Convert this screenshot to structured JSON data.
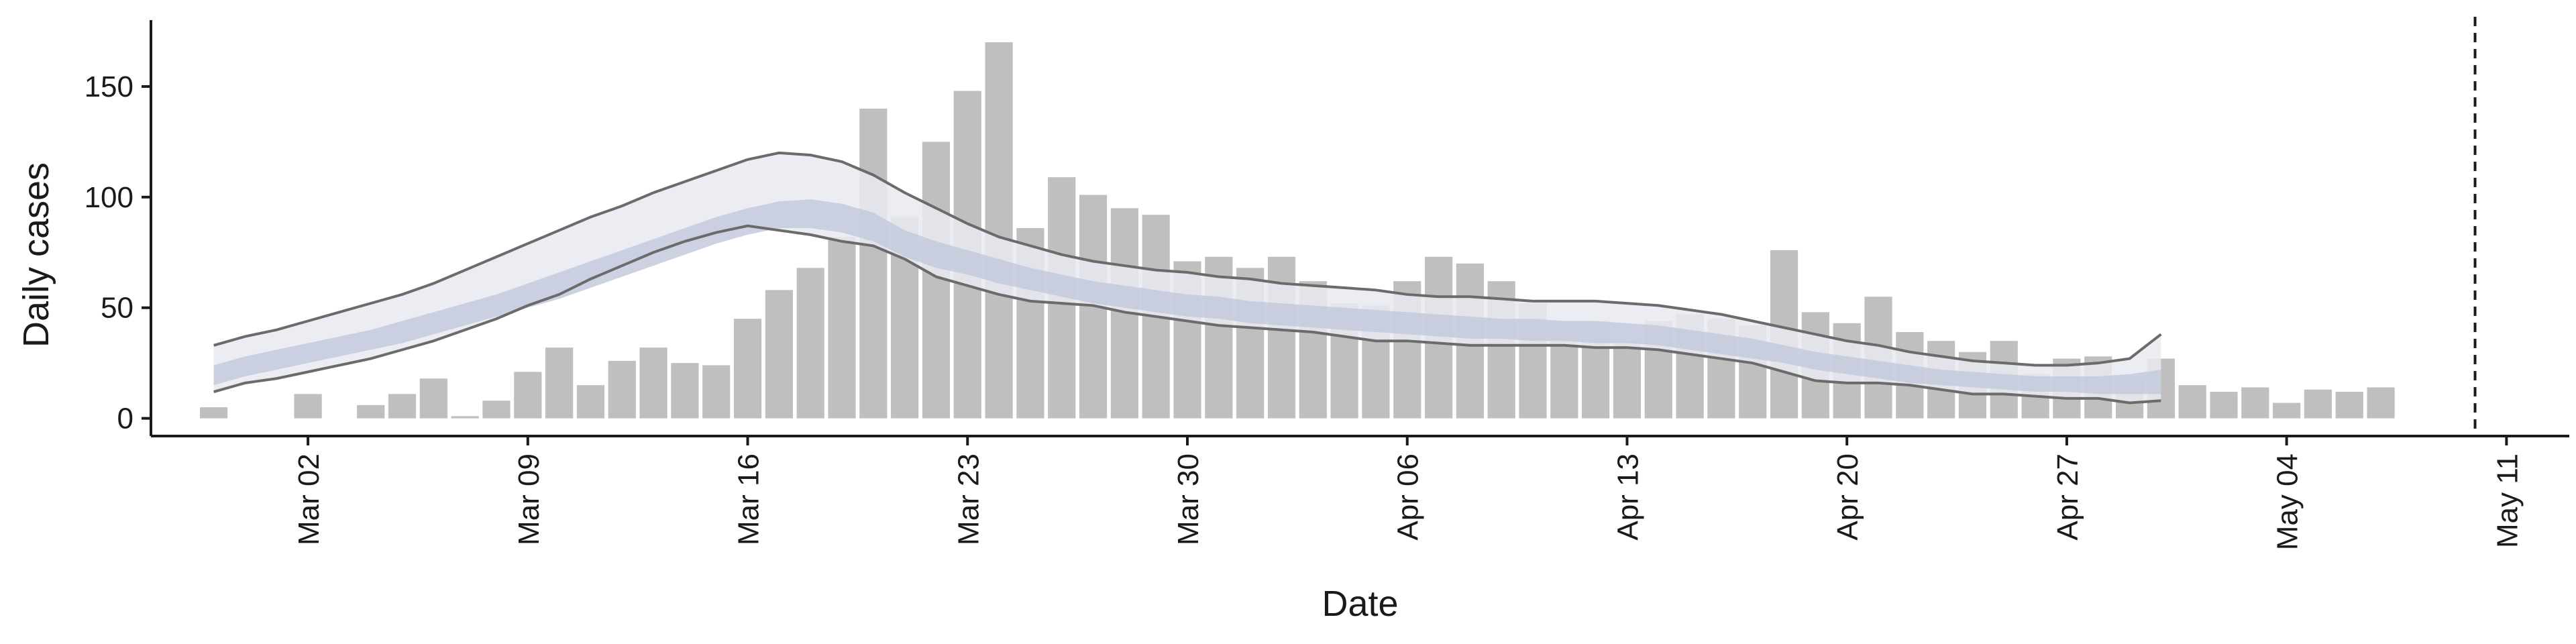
{
  "chart_data": {
    "type": "bar",
    "xlabel": "Date",
    "ylabel": "Daily cases",
    "x_axis": {
      "start_date": "2020-02-28",
      "range": [
        "2020-02-26",
        "2020-05-13"
      ],
      "tick_labels": [
        "Mar 02",
        "Mar 09",
        "Mar 16",
        "Mar 23",
        "Mar 30",
        "Apr 06",
        "Apr 13",
        "Apr 20",
        "Apr 27",
        "May 04",
        "May 11"
      ],
      "tick_dates": [
        "2020-03-02",
        "2020-03-09",
        "2020-03-16",
        "2020-03-23",
        "2020-03-30",
        "2020-04-06",
        "2020-04-13",
        "2020-04-20",
        "2020-04-27",
        "2020-05-04",
        "2020-05-11"
      ]
    },
    "y_axis": {
      "range": [
        -8,
        180
      ],
      "ticks": [
        0,
        50,
        100,
        150
      ],
      "tick_labels": [
        "0",
        "50",
        "100",
        "150"
      ]
    },
    "daily_cases": [
      5,
      0,
      0,
      11,
      0,
      6,
      11,
      18,
      1,
      8,
      21,
      32,
      15,
      26,
      32,
      25,
      24,
      45,
      58,
      68,
      82,
      140,
      91,
      125,
      148,
      170,
      86,
      109,
      101,
      95,
      92,
      71,
      73,
      68,
      73,
      62,
      52,
      51,
      62,
      73,
      70,
      62,
      52,
      44,
      44,
      35,
      44,
      47,
      45,
      42,
      76,
      48,
      43,
      55,
      39,
      35,
      30,
      35,
      20,
      27,
      28,
      19,
      27,
      15,
      12,
      14,
      7,
      13,
      12,
      14
    ],
    "estimate_band": {
      "start_date": "2020-02-28",
      "upper_outer": [
        33,
        37,
        40,
        44,
        48,
        52,
        56,
        61,
        67,
        73,
        79,
        85,
        91,
        96,
        102,
        107,
        112,
        117,
        120,
        119,
        116,
        110,
        102,
        95,
        88,
        82,
        78,
        74,
        71,
        69,
        67,
        66,
        64,
        63,
        61,
        60,
        59,
        58,
        56,
        55,
        55,
        54,
        53,
        53,
        53,
        52,
        51,
        49,
        47,
        44,
        41,
        38,
        35,
        33,
        30,
        28,
        26,
        25,
        24,
        24,
        25,
        27,
        38
      ],
      "upper_inner": [
        24,
        28,
        31,
        34,
        37,
        40,
        44,
        48,
        52,
        56,
        61,
        66,
        71,
        76,
        81,
        86,
        91,
        95,
        98,
        99,
        97,
        93,
        85,
        80,
        76,
        72,
        68,
        65,
        62,
        60,
        58,
        56,
        55,
        53,
        52,
        51,
        50,
        49,
        48,
        47,
        46,
        45,
        45,
        44,
        44,
        43,
        42,
        40,
        38,
        36,
        33,
        30,
        28,
        26,
        24,
        22,
        21,
        20,
        19,
        19,
        19,
        20,
        22
      ],
      "lower_inner": [
        15,
        19,
        22,
        25,
        28,
        31,
        34,
        38,
        42,
        46,
        50,
        54,
        59,
        64,
        69,
        74,
        79,
        83,
        86,
        86,
        84,
        80,
        73,
        68,
        65,
        61,
        58,
        55,
        52,
        50,
        48,
        46,
        45,
        43,
        42,
        41,
        40,
        39,
        38,
        37,
        36,
        36,
        35,
        35,
        34,
        34,
        33,
        31,
        29,
        27,
        25,
        22,
        20,
        18,
        16,
        15,
        14,
        13,
        12,
        12,
        11,
        11,
        11
      ],
      "lower_outer": [
        12,
        16,
        18,
        21,
        24,
        27,
        31,
        35,
        40,
        45,
        51,
        56,
        63,
        69,
        75,
        80,
        84,
        87,
        85,
        83,
        80,
        78,
        72,
        64,
        60,
        56,
        53,
        52,
        51,
        48,
        46,
        44,
        42,
        41,
        40,
        39,
        37,
        35,
        35,
        34,
        33,
        33,
        33,
        33,
        32,
        32,
        31,
        29,
        27,
        25,
        21,
        17,
        16,
        16,
        15,
        13,
        11,
        11,
        10,
        9,
        9,
        7,
        8
      ]
    },
    "vertical_line_date": "2020-05-10",
    "grid": false,
    "colors": {
      "bars": "#bfbfbf",
      "band_outer": "#e8eaf1",
      "band_inner": "#c4cadd",
      "band_lines": "#6b6b6b",
      "axis": "#1a1a1a"
    }
  }
}
